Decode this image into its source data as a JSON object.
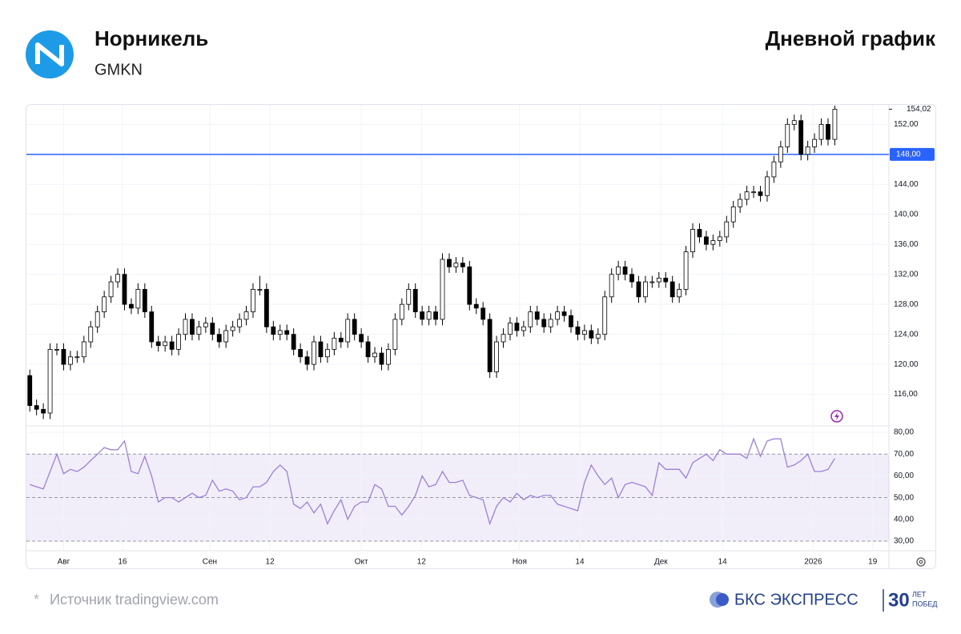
{
  "header": {
    "title": "Норникель",
    "ticker": "GMKN",
    "chart_label": "Дневной график"
  },
  "footer": {
    "source_mark": "*",
    "source": "Источник tradingview.com",
    "brand": "БКС ЭКСПРЕСС",
    "anniversary": "30",
    "anniversary_line1": "ЛЕТ",
    "anniversary_line2": "ПОБЕД"
  },
  "chart_data": [
    {
      "type": "candlestick",
      "up_color": "#ffffff",
      "down_color": "#000000",
      "edge_color": "#000000",
      "grid": true,
      "xlim": [
        -0.5,
        127
      ],
      "ylim": [
        111.9,
        154.6
      ],
      "yticks": [
        {
          "value": 116,
          "label": "116,00"
        },
        {
          "value": 120,
          "label": "120,00"
        },
        {
          "value": 124,
          "label": "124,00"
        },
        {
          "value": 128,
          "label": "128,00"
        },
        {
          "value": 132,
          "label": "132,00"
        },
        {
          "value": 136,
          "label": "136,00"
        },
        {
          "value": 140,
          "label": "140,00"
        },
        {
          "value": 144,
          "label": "144,00"
        },
        {
          "value": 152,
          "label": "152,00"
        }
      ],
      "price_line": {
        "value": 148,
        "label": "148,00",
        "color": "#2962ff"
      },
      "last_price": {
        "value": 154.02,
        "label": "154,02"
      },
      "open": [
        118.5,
        114.5,
        114,
        113.5,
        122,
        122,
        120,
        121,
        121,
        123,
        125,
        127,
        129,
        131,
        132,
        128,
        127.5,
        130,
        127,
        123,
        122.5,
        123,
        122,
        124,
        126,
        124,
        125,
        125.5,
        124,
        123,
        124.5,
        125,
        126,
        127,
        130,
        130,
        125,
        124,
        124.5,
        124,
        122,
        121,
        120,
        123,
        121,
        122,
        123.5,
        123,
        126,
        124,
        123,
        121,
        121.5,
        120,
        122,
        126,
        128,
        130,
        127,
        126,
        127,
        126,
        134,
        133,
        133.5,
        133,
        128,
        127.5,
        126,
        119,
        123,
        124,
        125.5,
        124.5,
        125,
        127,
        126,
        125,
        126,
        127,
        126.5,
        125,
        124,
        124.5,
        123.5,
        124,
        129,
        132,
        133,
        132,
        131,
        129,
        131,
        131,
        131.5,
        131,
        129,
        130,
        135,
        138,
        137,
        136,
        136.5,
        137,
        139,
        141,
        142,
        143,
        143,
        142.5,
        145,
        147,
        149,
        152,
        152.5,
        148,
        149,
        150,
        152,
        150
      ],
      "high": [
        119.3,
        115.3,
        114.8,
        122.8,
        122.8,
        122.8,
        121.8,
        121.8,
        123.8,
        125.8,
        127.8,
        129.8,
        131.8,
        132.8,
        132.8,
        128.8,
        130.8,
        130.8,
        127.8,
        123.8,
        123.8,
        123.8,
        124.8,
        126.8,
        126.8,
        125.8,
        126.3,
        126.3,
        124.8,
        125.3,
        125.8,
        126.8,
        127.8,
        130.8,
        131.8,
        130.8,
        125.8,
        125.3,
        125.3,
        124.8,
        122.8,
        121.8,
        123.8,
        123.8,
        122.8,
        124.3,
        124.3,
        126.8,
        126.8,
        124.8,
        123.8,
        122.3,
        122.3,
        122.8,
        126.8,
        128.8,
        130.8,
        130.8,
        127.8,
        127.8,
        127.8,
        134.8,
        134.8,
        134.3,
        134.3,
        133.8,
        128.8,
        128.3,
        126.8,
        123.8,
        124.8,
        126.3,
        126.3,
        125.8,
        127.8,
        127.8,
        126.8,
        126.8,
        127.8,
        127.8,
        127.3,
        125.8,
        125.3,
        125.3,
        124.8,
        129.8,
        132.8,
        133.8,
        133.8,
        132.8,
        131.8,
        131.8,
        131.8,
        132.3,
        132.3,
        131.8,
        130.8,
        135.8,
        138.8,
        138.8,
        137.8,
        137.3,
        137.8,
        139.8,
        141.8,
        142.8,
        143.8,
        143.8,
        143.8,
        145.8,
        147.8,
        149.8,
        152.8,
        153.3,
        153.3,
        149.8,
        150.8,
        152.8,
        152.8,
        154.5
      ],
      "low": [
        113.7,
        113.2,
        112.7,
        112.7,
        121.2,
        119.2,
        119.2,
        120.2,
        120.2,
        122.2,
        124.2,
        126.2,
        128.2,
        130.2,
        127.2,
        126.7,
        126.7,
        126.2,
        122.2,
        121.7,
        121.7,
        121.2,
        121.2,
        123.2,
        123.2,
        123.2,
        124.2,
        123.2,
        122.2,
        122.2,
        123.7,
        124.2,
        125.2,
        126.2,
        129.2,
        124.2,
        123.2,
        123.2,
        123.2,
        121.2,
        120.2,
        119.2,
        119.2,
        120.2,
        120.2,
        121.2,
        122.2,
        122.2,
        123.2,
        122.2,
        120.2,
        120.2,
        119.2,
        119.2,
        121.2,
        125.2,
        127.2,
        126.2,
        125.2,
        125.2,
        125.2,
        125.2,
        132.2,
        132.2,
        132.2,
        127.2,
        126.7,
        125.2,
        118.2,
        118.2,
        122.2,
        123.2,
        123.7,
        123.7,
        124.2,
        125.2,
        124.2,
        124.2,
        125.2,
        125.7,
        124.2,
        123.2,
        123.2,
        122.7,
        122.7,
        123.2,
        128.2,
        131.2,
        131.2,
        130.2,
        128.2,
        128.2,
        130.2,
        130.2,
        130.2,
        128.2,
        128.2,
        129.2,
        134.2,
        136.2,
        135.2,
        135.2,
        135.7,
        136.2,
        138.2,
        140.2,
        141.2,
        142.2,
        141.7,
        141.7,
        144.2,
        146.2,
        148.2,
        151.2,
        147.2,
        147.2,
        148.2,
        149.2,
        149.2,
        149.2
      ],
      "close": [
        114.5,
        114,
        113.5,
        122,
        122,
        120,
        121,
        121,
        123,
        125,
        127,
        129,
        131,
        132,
        128,
        127.5,
        130,
        127,
        123,
        122.5,
        123,
        122,
        124,
        126,
        124,
        125,
        125.5,
        124,
        123,
        124.5,
        125,
        126,
        127,
        130,
        130,
        125,
        124,
        124.5,
        124,
        122,
        121,
        120,
        123,
        121,
        122,
        123.5,
        123,
        126,
        124,
        123,
        121,
        121.5,
        120,
        122,
        126,
        128,
        130,
        127,
        126,
        127,
        126,
        134,
        133,
        133.5,
        133,
        128,
        127.5,
        126,
        119,
        123,
        124,
        125.5,
        124.5,
        125,
        127,
        126,
        125,
        126,
        127,
        126.5,
        125,
        124,
        124.5,
        123.5,
        124,
        129,
        132,
        133,
        132,
        131,
        129,
        131,
        131,
        131.5,
        131,
        129,
        130,
        135,
        138,
        137,
        136,
        136.5,
        137,
        139,
        141,
        142,
        143,
        143,
        142.5,
        145,
        147,
        149,
        152,
        152.5,
        148,
        149,
        150,
        152,
        150,
        154.02
      ]
    },
    {
      "type": "line",
      "color": "#9c80d8",
      "band": [
        30,
        70
      ],
      "band_color": "#7e57c2",
      "levels": [
        70,
        50,
        30
      ],
      "xlim": [
        -0.5,
        127
      ],
      "ylim": [
        25.6,
        82.6
      ],
      "yticks": [
        {
          "value": 30,
          "label": "30,00"
        },
        {
          "value": 40,
          "label": "40,00"
        },
        {
          "value": 50,
          "label": "50,00"
        },
        {
          "value": 60,
          "label": "60,00"
        },
        {
          "value": 70,
          "label": "70,00"
        },
        {
          "value": 80,
          "label": "80,00"
        }
      ],
      "xticks": [
        {
          "value": 5,
          "label": "Авг"
        },
        {
          "value": 13.7,
          "label": "16"
        },
        {
          "value": 26.6,
          "label": "Сен"
        },
        {
          "value": 35.5,
          "label": "12"
        },
        {
          "value": 49,
          "label": "Окт"
        },
        {
          "value": 57.9,
          "label": "12"
        },
        {
          "value": 72.4,
          "label": "Ноя"
        },
        {
          "value": 81.3,
          "label": "14"
        },
        {
          "value": 93.3,
          "label": "Дек"
        },
        {
          "value": 102.4,
          "label": "14"
        },
        {
          "value": 115.8,
          "label": "2026"
        },
        {
          "value": 124.6,
          "label": "19"
        }
      ],
      "values": [
        56,
        55,
        54,
        62,
        70,
        61,
        63,
        62,
        64,
        67,
        70,
        73,
        72,
        72,
        76,
        62,
        61,
        69,
        60,
        48,
        50,
        50,
        48,
        50,
        52,
        50,
        51,
        58,
        53,
        54,
        53,
        49,
        50,
        55,
        55,
        57,
        62,
        65,
        62,
        47,
        45,
        48,
        43,
        47,
        38,
        44,
        49,
        40,
        46,
        48,
        48,
        56,
        54,
        46,
        46,
        42,
        46,
        51,
        60,
        55,
        56,
        62,
        57,
        57,
        58,
        51,
        50,
        49,
        38,
        46,
        50,
        48,
        52,
        49,
        51,
        50,
        51,
        51,
        47,
        46,
        45,
        44,
        57,
        65,
        60,
        56,
        59,
        50,
        56,
        57,
        56,
        55,
        51,
        66,
        63,
        63,
        63,
        59,
        66,
        68,
        70,
        67,
        72,
        70,
        70,
        70,
        68,
        77,
        69,
        76,
        77,
        77,
        64,
        65,
        67,
        70,
        62,
        62,
        63,
        68
      ]
    }
  ]
}
